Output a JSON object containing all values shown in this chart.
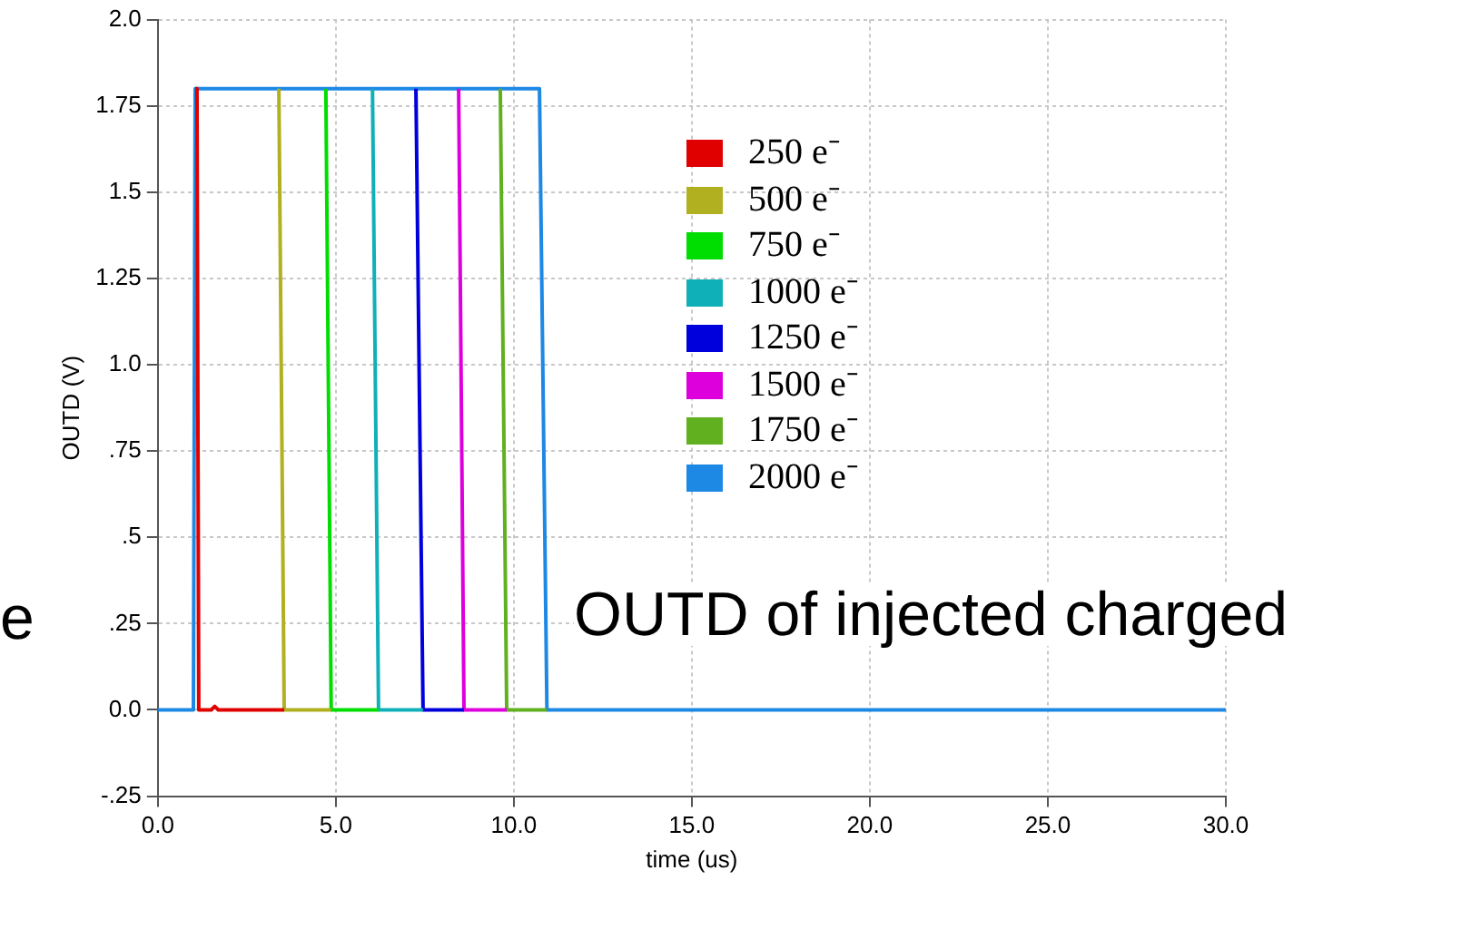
{
  "chart_data": {
    "type": "line",
    "xlabel": "time (us)",
    "ylabel": "OUTD (V)",
    "xlim": [
      0,
      30
    ],
    "xticks": [
      {
        "value": 0,
        "label": "0.0"
      },
      {
        "value": 5,
        "label": "5.0"
      },
      {
        "value": 10,
        "label": "10.0"
      },
      {
        "value": 15,
        "label": "15.0"
      },
      {
        "value": 20,
        "label": "20.0"
      },
      {
        "value": 25,
        "label": "25.0"
      },
      {
        "value": 30,
        "label": "30.0"
      }
    ],
    "ylim": [
      -0.25,
      2
    ],
    "yticks": [
      {
        "value": -0.25,
        "label": "-.25"
      },
      {
        "value": 0,
        "label": "0.0"
      },
      {
        "value": 0.25,
        "label": ".25"
      },
      {
        "value": 0.5,
        "label": ".5"
      },
      {
        "value": 0.75,
        "label": ".75"
      },
      {
        "value": 1,
        "label": "1.0"
      },
      1.25,
      1.5,
      1.75,
      {
        "value": 2,
        "label": "2.0"
      }
    ],
    "grid": true,
    "legend": "top",
    "marker": "none",
    "line_style": "solid",
    "annotations": [
      "OUTD of injected charged",
      "e"
    ],
    "series": [
      {
        "name": "250 e⁻",
        "color": "#e00000",
        "x": [
          1.05,
          1.1,
          1.15,
          1.5,
          1.6,
          1.7,
          3.55
        ],
        "values": [
          1.8,
          1.8,
          0,
          0,
          0.01,
          0,
          0
        ]
      },
      {
        "name": "500 e⁻",
        "color": "#b0b020",
        "x": [
          3.4,
          3.55,
          4.87
        ],
        "values": [
          1.8,
          0,
          0
        ]
      },
      {
        "name": "750 e⁻",
        "color": "#00dd00",
        "x": [
          4.72,
          4.87,
          6.2
        ],
        "values": [
          1.8,
          0,
          0
        ]
      },
      {
        "name": "1000 e⁻",
        "color": "#10b0b8",
        "x": [
          6.03,
          6.2,
          7.45
        ],
        "values": [
          1.8,
          0,
          0
        ]
      },
      {
        "name": "1250 e⁻",
        "color": "#0000dd",
        "x": [
          7.25,
          7.45,
          8.6
        ],
        "values": [
          1.8,
          0,
          0
        ]
      },
      {
        "name": "1500 e⁻",
        "color": "#dd00dd",
        "x": [
          8.45,
          8.6,
          9.8
        ],
        "values": [
          1.8,
          0,
          0
        ]
      },
      {
        "name": "1750 e⁻",
        "color": "#60b020",
        "x": [
          9.62,
          9.8,
          10.93
        ],
        "values": [
          1.8,
          0,
          0
        ]
      },
      {
        "name": "2000 e⁻",
        "color": "#1e88e5",
        "x": [
          0,
          1,
          1.05,
          10.72,
          10.93,
          30
        ],
        "values": [
          0,
          0,
          1.8,
          1.8,
          0,
          0
        ]
      }
    ]
  }
}
